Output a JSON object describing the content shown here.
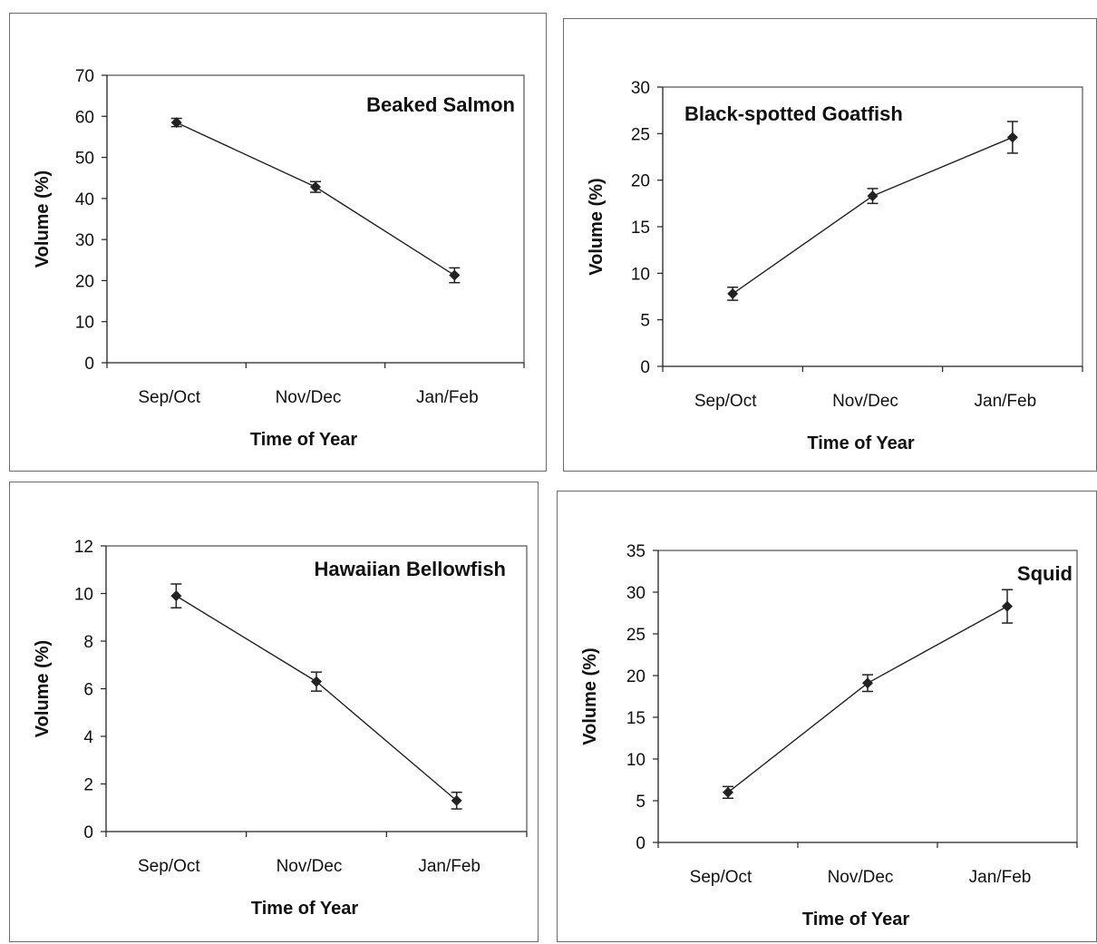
{
  "chart_data": [
    {
      "type": "line",
      "title": "Beaked Salmon",
      "xlabel": "Time of Year",
      "ylabel": "Volume (%)",
      "categories": [
        "Sep/Oct",
        "Nov/Dec",
        "Jan/Feb"
      ],
      "values": [
        58.5,
        42.8,
        21.3
      ],
      "error": [
        1.0,
        1.3,
        1.8
      ],
      "ylim": [
        0,
        70
      ],
      "yticks": [
        0,
        10,
        20,
        30,
        40,
        50,
        60,
        70
      ],
      "grid": false
    },
    {
      "type": "line",
      "title": "Black-spotted Goatfish",
      "xlabel": "Time of Year",
      "ylabel": "Volume (%)",
      "categories": [
        "Sep/Oct",
        "Nov/Dec",
        "Jan/Feb"
      ],
      "values": [
        7.8,
        18.3,
        24.6
      ],
      "error": [
        0.7,
        0.8,
        1.7
      ],
      "ylim": [
        0,
        30
      ],
      "yticks": [
        0,
        5,
        10,
        15,
        20,
        25,
        30
      ],
      "grid": false
    },
    {
      "type": "line",
      "title": "Hawaiian Bellowfish",
      "xlabel": "Time of Year",
      "ylabel": "Volume (%)",
      "categories": [
        "Sep/Oct",
        "Nov/Dec",
        "Jan/Feb"
      ],
      "values": [
        9.9,
        6.3,
        1.3
      ],
      "error": [
        0.5,
        0.4,
        0.35
      ],
      "ylim": [
        0,
        12
      ],
      "yticks": [
        0,
        2,
        4,
        6,
        8,
        10,
        12
      ],
      "grid": false
    },
    {
      "type": "line",
      "title": "Squid",
      "xlabel": "Time of Year",
      "ylabel": "Volume (%)",
      "categories": [
        "Sep/Oct",
        "Nov/Dec",
        "Jan/Feb"
      ],
      "values": [
        6.0,
        19.1,
        28.3
      ],
      "error": [
        0.7,
        1.0,
        2.0
      ],
      "ylim": [
        0,
        35
      ],
      "yticks": [
        0,
        5,
        10,
        15,
        20,
        25,
        30,
        35
      ],
      "grid": false
    }
  ]
}
